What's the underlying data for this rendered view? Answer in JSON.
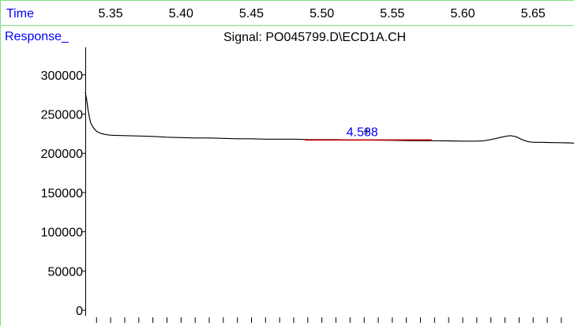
{
  "chart_data": {
    "type": "line",
    "title": "Signal: PO045799.D\\ECD1A.CH",
    "x_axis_label": "Time",
    "y_axis_label": "Response_",
    "x_ticks": [
      "5.35",
      "5.40",
      "5.45",
      "5.50",
      "5.55",
      "5.60",
      "5.65"
    ],
    "x_tick_values": [
      5.35,
      5.4,
      5.45,
      5.5,
      5.55,
      5.6,
      5.65
    ],
    "y_ticks": [
      "0",
      "50000",
      "100000",
      "150000",
      "200000",
      "250000",
      "300000"
    ],
    "y_tick_values": [
      0,
      50000,
      100000,
      150000,
      200000,
      250000,
      300000
    ],
    "xlim": [
      5.332,
      5.679
    ],
    "ylim": [
      -5000,
      335000
    ],
    "grid": false,
    "series": [
      {
        "color": "#000000",
        "x": [
          5.332,
          5.333,
          5.334,
          5.335,
          5.336,
          5.338,
          5.34,
          5.343,
          5.346,
          5.35,
          5.36,
          5.37,
          5.38,
          5.39,
          5.4,
          5.41,
          5.42,
          5.43,
          5.44,
          5.45,
          5.46,
          5.47,
          5.48,
          5.49,
          5.5,
          5.51,
          5.52,
          5.53,
          5.54,
          5.55,
          5.56,
          5.57,
          5.58,
          5.59,
          5.6,
          5.61,
          5.615,
          5.62,
          5.625,
          5.63,
          5.634,
          5.638,
          5.642,
          5.646,
          5.65,
          5.655,
          5.66,
          5.665,
          5.67,
          5.675,
          5.679
        ],
        "y": [
          278000,
          268000,
          255000,
          245000,
          238000,
          232000,
          228000,
          225500,
          224000,
          223000,
          222500,
          222000,
          221500,
          220500,
          220000,
          219500,
          219500,
          219000,
          218500,
          218500,
          218000,
          218000,
          218000,
          217500,
          217500,
          217500,
          217000,
          217000,
          216800,
          216500,
          216200,
          216000,
          216000,
          215800,
          215500,
          215500,
          216000,
          217500,
          219500,
          221500,
          222500,
          221000,
          217500,
          215000,
          214000,
          214000,
          213800,
          213600,
          213500,
          213300,
          213000
        ]
      }
    ],
    "annotations": [
      {
        "text": "4.588",
        "x": 5.532,
        "y": 217000,
        "color": "#0000ff",
        "baseline_from": 5.488,
        "baseline_to": 5.578,
        "baseline_color": "#c00000"
      }
    ],
    "colors": {
      "axis_label": "#0000ff",
      "header_border": "#80e080",
      "trace": "#000000",
      "peak_label": "#0000ff",
      "baseline": "#c00000"
    }
  }
}
